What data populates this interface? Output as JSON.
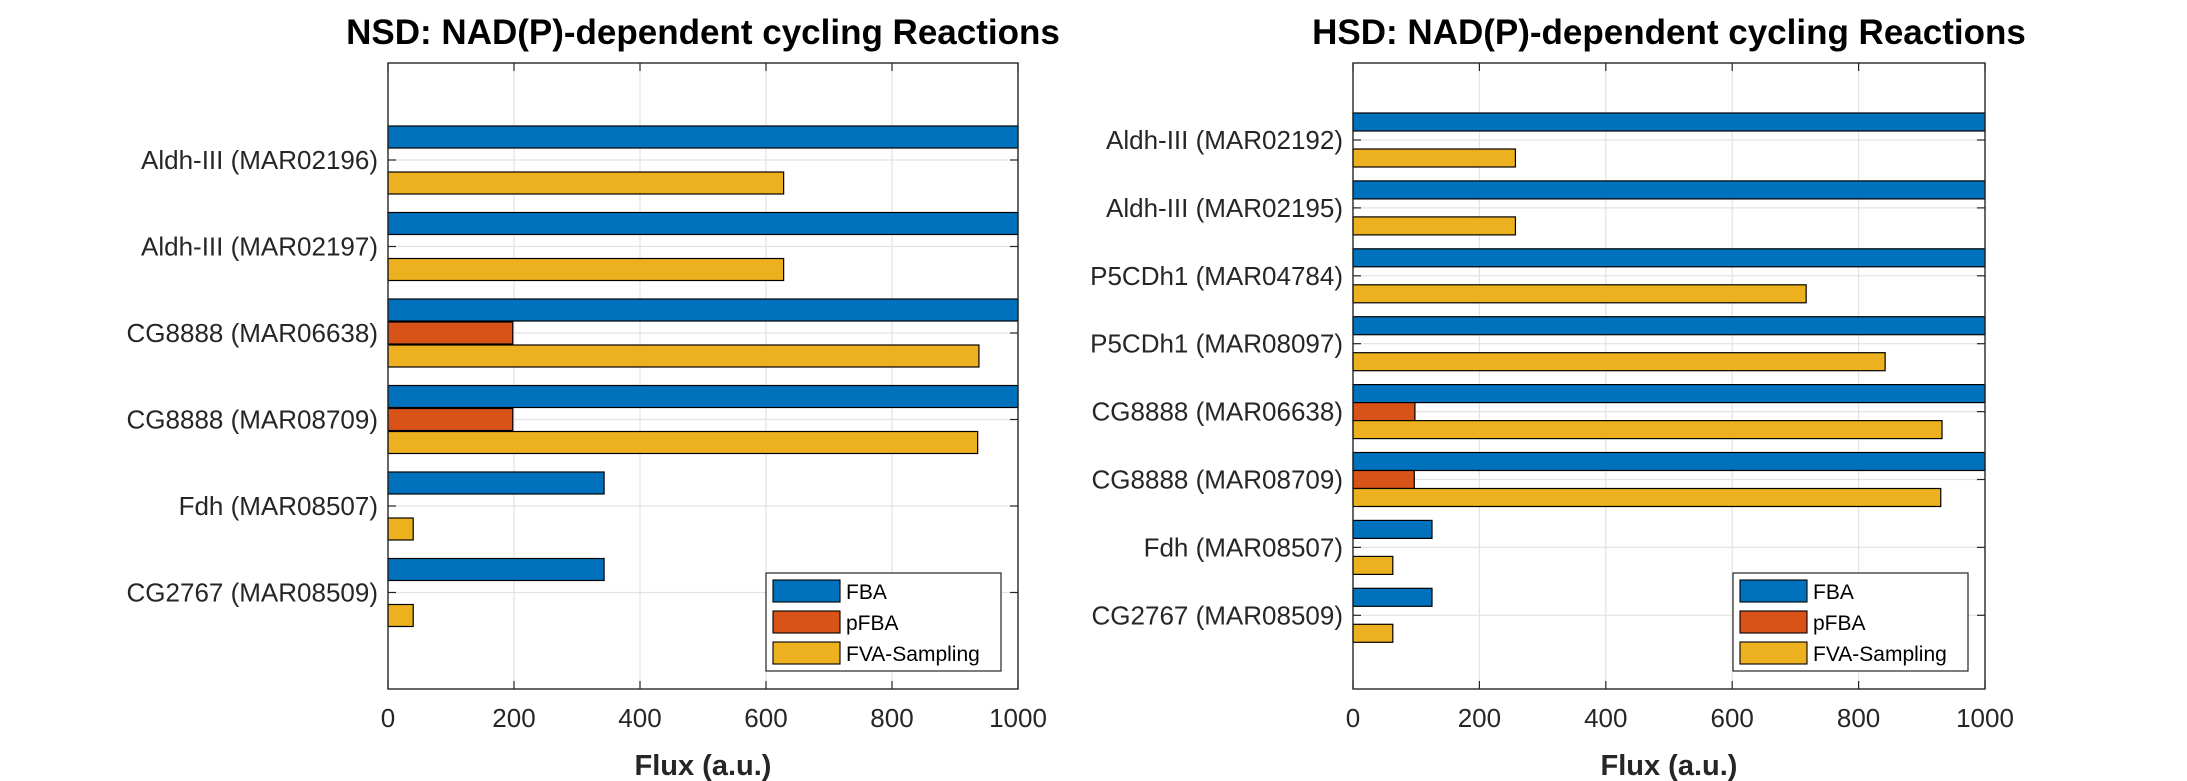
{
  "colors": {
    "FBA": "#0072BD",
    "pFBA": "#D95319",
    "FVA-Sampling": "#EDB120",
    "grid": "#e3e3e3",
    "axis": "#262626"
  },
  "chart_data": [
    {
      "type": "bar",
      "orientation": "horizontal",
      "title": "NSD: NAD(P)-dependent cycling Reactions",
      "xlabel": "Flux (a.u.)",
      "ylabel": "",
      "xlim": [
        0,
        1000
      ],
      "xticks": [
        "0",
        "200",
        "400",
        "600",
        "800",
        "1000"
      ],
      "grid": true,
      "legend_position": "bottom-right",
      "categories": [
        "Aldh-III (MAR02196)",
        "Aldh-III (MAR02197)",
        "CG8888 (MAR06638)",
        "CG8888 (MAR08709)",
        "Fdh (MAR08507)",
        "CG2767 (MAR08509)"
      ],
      "series": [
        {
          "name": "FBA",
          "values": [
            1000,
            1000,
            1000,
            1000,
            343,
            343
          ]
        },
        {
          "name": "pFBA",
          "values": [
            0,
            0,
            198,
            198,
            0,
            0
          ]
        },
        {
          "name": "FVA-Sampling",
          "values": [
            628,
            628,
            938,
            936,
            40,
            40
          ]
        }
      ]
    },
    {
      "type": "bar",
      "orientation": "horizontal",
      "title": "HSD: NAD(P)-dependent cycling Reactions",
      "xlabel": "Flux (a.u.)",
      "ylabel": "",
      "xlim": [
        0,
        1000
      ],
      "xticks": [
        "0",
        "200",
        "400",
        "600",
        "800",
        "1000"
      ],
      "grid": true,
      "legend_position": "bottom-right",
      "categories": [
        "Aldh-III (MAR02192)",
        "Aldh-III (MAR02195)",
        "P5CDh1 (MAR04784)",
        "P5CDh1 (MAR08097)",
        "CG8888 (MAR06638)",
        "CG8888 (MAR08709)",
        "Fdh (MAR08507)",
        "CG2767 (MAR08509)"
      ],
      "series": [
        {
          "name": "FBA",
          "values": [
            1000,
            1000,
            1000,
            1000,
            1000,
            1000,
            125,
            125
          ]
        },
        {
          "name": "pFBA",
          "values": [
            0,
            0,
            0,
            0,
            98,
            97,
            0,
            0
          ]
        },
        {
          "name": "FVA-Sampling",
          "values": [
            257,
            257,
            717,
            842,
            932,
            930,
            63,
            63
          ]
        }
      ]
    }
  ]
}
